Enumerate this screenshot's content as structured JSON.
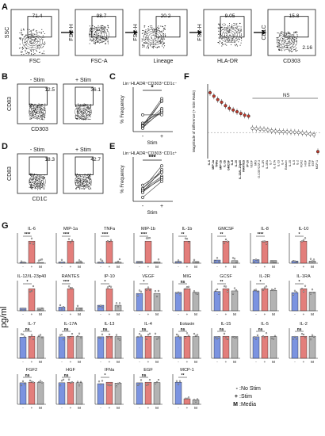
{
  "panel_letters": [
    "A",
    "B",
    "C",
    "D",
    "E",
    "F",
    "G"
  ],
  "panel_a": {
    "plots": [
      {
        "xlabel": "FSC",
        "ylabel": "SSC",
        "gate_value": "71.4"
      },
      {
        "xlabel": "FSC-A",
        "ylabel": "FSC-H",
        "gate_value": "98.7"
      },
      {
        "xlabel": "Lineage",
        "ylabel": "FSC-H",
        "gate_value": "20.2"
      },
      {
        "xlabel": "HLA-DR",
        "ylabel": "FSC-H",
        "gate_value": "9.05"
      },
      {
        "xlabel": "CD303",
        "ylabel": "CD1C",
        "gate_value": "15.8",
        "gate_value_2": "2.16"
      }
    ]
  },
  "panel_b": {
    "plots": [
      {
        "title": "- Stim",
        "value": "12.5"
      },
      {
        "title": "+ Stim",
        "value": "36.1"
      }
    ],
    "xlabel": "CD303",
    "ylabel": "CD83"
  },
  "panel_c": {
    "title": "Lin⁻HLADR⁺CD303⁺CD1c⁻",
    "ylabel": "% Frequency",
    "xlabel": "Stim",
    "sig": "*",
    "ticks": [
      "-",
      "+"
    ]
  },
  "panel_d": {
    "plots": [
      {
        "title": "- Stim",
        "value": "18.3"
      },
      {
        "title": "+ Stim",
        "value": "42.7"
      }
    ],
    "xlabel": "CD1C",
    "ylabel": "CD83"
  },
  "panel_e": {
    "title": "Lin⁻HLADR⁺CD303⁻CD1c⁺",
    "ylabel": "% Frequency",
    "xlabel": "Stim",
    "sig": "***",
    "ticks": [
      "-",
      "+"
    ]
  },
  "panel_f": {
    "ylabel": "Magnitude of Difference (+ Stim Ratio)",
    "ns_label": "NS",
    "labels": [
      "IL-6",
      "MIP-1a",
      "TNFa",
      "MIP-1b",
      "IL-1b",
      "GMCSF",
      "IL-8",
      "IL-10",
      "IL-12/IL-23p40",
      "RANTES",
      "IP-10",
      "VEGF",
      "MIG",
      "G-CSF/CSF-3",
      "IL-2R",
      "IL-1RA",
      "IL-7",
      "IL-17A",
      "IL-13",
      "IL-4",
      "Eotaxin",
      "IL-15",
      "IL-5",
      "IL-2",
      "FGF2",
      "HGF",
      "IFNa",
      "EGF",
      "MCP-1"
    ],
    "values": [
      2.3,
      2.1,
      1.9,
      1.75,
      1.55,
      1.4,
      1.3,
      1.2,
      1.1,
      1.0,
      0.95,
      0.25,
      0.22,
      0.2,
      0.18,
      0.15,
      0.1,
      0.08,
      0.06,
      0.05,
      0.04,
      0.03,
      0.02,
      0.0,
      -0.02,
      -0.05,
      -0.08,
      -0.12,
      -1.1
    ]
  },
  "panel_g": {
    "ylabel": "pg/ml",
    "tick_labels": [
      "-",
      "+",
      "M"
    ],
    "legend": [
      ":No Stim",
      ":Stim",
      ":Media"
    ],
    "legend_keys": [
      "-",
      "+",
      "M"
    ],
    "colors": {
      "no_stim": "#4f6fd6",
      "stim": "#d9534f",
      "media": "#9a9a9a"
    },
    "cytokines": [
      {
        "name": "IL-6",
        "sig": "****",
        "values": [
          2,
          60,
          2
        ]
      },
      {
        "name": "MIP-1a",
        "sig": "****",
        "values": [
          3,
          55,
          3
        ]
      },
      {
        "name": "TNFa",
        "sig": "****",
        "values": [
          2,
          45,
          2
        ]
      },
      {
        "name": "MIP-1b",
        "sig": "****",
        "values": [
          4,
          50,
          3
        ]
      },
      {
        "name": "IL-1b",
        "sig": "**",
        "values": [
          3,
          40,
          3
        ]
      },
      {
        "name": "GMCSF",
        "sig": "**",
        "values": [
          5,
          35,
          4
        ]
      },
      {
        "name": "IL-8",
        "sig": "****",
        "values": [
          4,
          25,
          3
        ]
      },
      {
        "name": "IL-10",
        "sig": "*",
        "values": [
          3,
          30,
          3
        ]
      },
      {
        "name": "IL-12/IL-23p40",
        "sig": "*",
        "values": [
          3,
          25,
          3
        ]
      },
      {
        "name": "RANTES",
        "sig": "****",
        "values": [
          5,
          30,
          4
        ]
      },
      {
        "name": "IP-10",
        "sig": "*",
        "values": [
          5,
          20,
          5
        ]
      },
      {
        "name": "VEGF",
        "sig": "*",
        "values": [
          55,
          70,
          55
        ]
      },
      {
        "name": "MIG",
        "sig": "ns",
        "values": [
          10,
          12,
          10
        ]
      },
      {
        "name": "GCSF",
        "sig": "**",
        "values": [
          70,
          80,
          72
        ]
      },
      {
        "name": "IL-2R",
        "sig": "*",
        "values": [
          72,
          80,
          74
        ]
      },
      {
        "name": "IL-1RA",
        "sig": "*",
        "values": [
          70,
          85,
          72
        ]
      },
      {
        "name": "IL-7",
        "sig": "ns",
        "values": [
          75,
          78,
          76
        ]
      },
      {
        "name": "IL-17A",
        "sig": "ns",
        "values": [
          76,
          78,
          77
        ]
      },
      {
        "name": "IL-13",
        "sig": "ns",
        "values": [
          75,
          77,
          76
        ]
      },
      {
        "name": "IL-4",
        "sig": "ns",
        "values": [
          76,
          78,
          77
        ]
      },
      {
        "name": "Eotaxin",
        "sig": "ns",
        "values": [
          77,
          79,
          78
        ]
      },
      {
        "name": "IL-15",
        "sig": "ns",
        "values": [
          77,
          78,
          77
        ]
      },
      {
        "name": "IL-5",
        "sig": "ns",
        "values": [
          76,
          78,
          77
        ]
      },
      {
        "name": "IL-2",
        "sig": "ns",
        "values": [
          76,
          77,
          77
        ]
      },
      {
        "name": "FGF2",
        "sig": "ns",
        "values": [
          76,
          78,
          77
        ]
      },
      {
        "name": "HGF",
        "sig": "ns",
        "values": [
          80,
          82,
          80
        ]
      },
      {
        "name": "IFNa",
        "sig": "*",
        "values": [
          70,
          75,
          72
        ]
      },
      {
        "name": "EGF",
        "sig": "ns",
        "values": [
          74,
          76,
          75
        ]
      },
      {
        "name": "MCP-1",
        "sig": "**",
        "values": [
          40,
          10,
          8
        ]
      }
    ]
  }
}
